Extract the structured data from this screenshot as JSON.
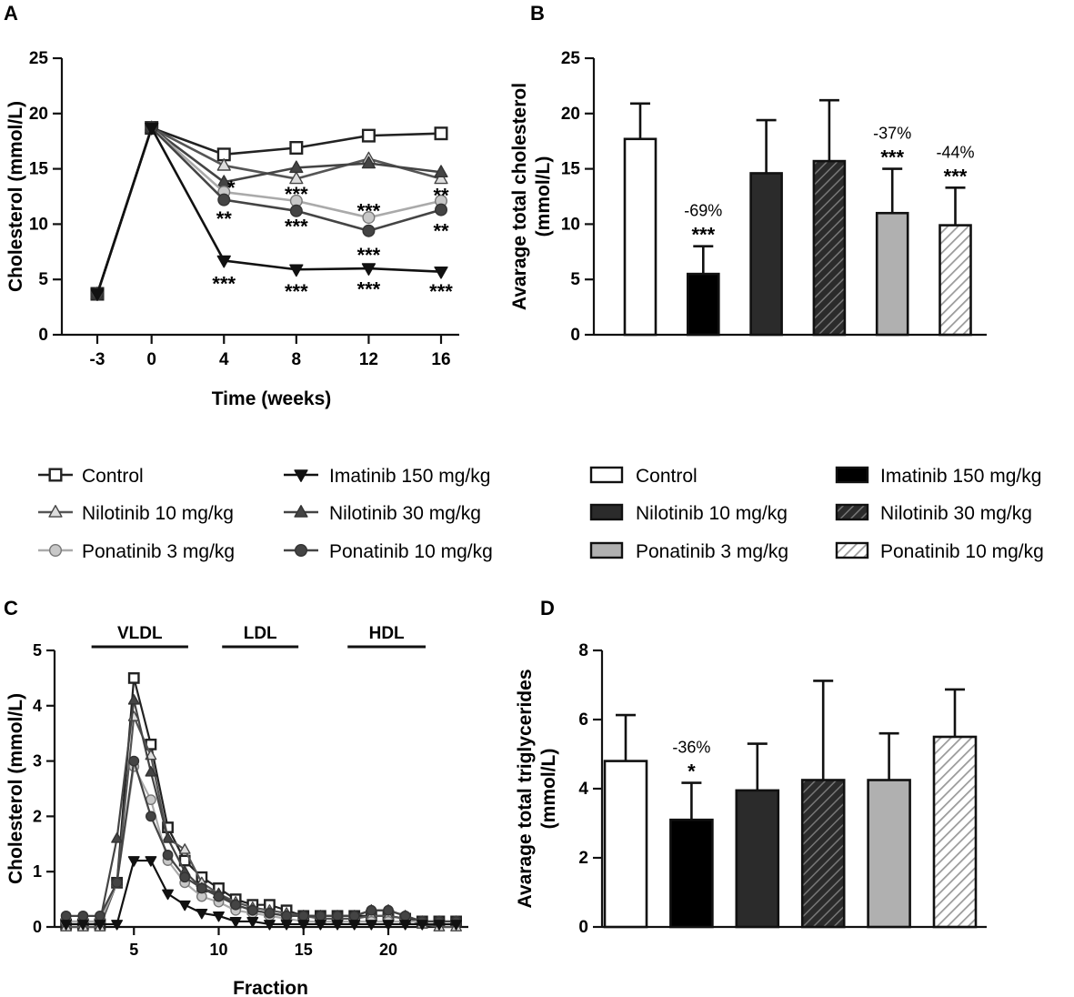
{
  "panels": {
    "A": {
      "letter": "A"
    },
    "B": {
      "letter": "B"
    },
    "C": {
      "letter": "C"
    },
    "D": {
      "letter": "D"
    }
  },
  "legend_lines": [
    {
      "label": "Control",
      "series": "Control"
    },
    {
      "label": "Imatinib 150 mg/kg",
      "series": "Imatinib 150 mg/kg"
    },
    {
      "label": "Nilotinib 10 mg/kg",
      "series": "Nilotinib 10 mg/kg"
    },
    {
      "label": "Nilotinib 30 mg/kg",
      "series": "Nilotinib 30 mg/kg"
    },
    {
      "label": "Ponatinib 3 mg/kg",
      "series": "Ponatinib 3 mg/kg"
    },
    {
      "label": "Ponatinib 10 mg/kg",
      "series": "Ponatinib 10 mg/kg"
    }
  ],
  "legend_bars": [
    {
      "label": "Control",
      "series": "Control"
    },
    {
      "label": "Imatinib 150 mg/kg",
      "series": "Imatinib 150 mg/kg"
    },
    {
      "label": "Nilotinib 10 mg/kg",
      "series": "Nilotinib 10 mg/kg"
    },
    {
      "label": "Nilotinib 30 mg/kg",
      "series": "Nilotinib 30 mg/kg"
    },
    {
      "label": "Ponatinib 3 mg/kg",
      "series": "Ponatinib 3 mg/kg"
    },
    {
      "label": "Ponatinib 10 mg/kg",
      "series": "Ponatinib 10 mg/kg"
    }
  ],
  "styles": {
    "Control": {
      "marker": "square",
      "fill": "#ffffff",
      "stroke": "#222222",
      "line": "#222222",
      "bar": "#ffffff",
      "hatch": false
    },
    "Imatinib 150 mg/kg": {
      "marker": "tri-down",
      "fill": "#111111",
      "stroke": "#111111",
      "line": "#111111",
      "bar": "#000000",
      "hatch": false
    },
    "Nilotinib 10 mg/kg": {
      "marker": "tri-up",
      "fill": "#dddddd",
      "stroke": "#444444",
      "line": "#555555",
      "bar": "#2b2b2b",
      "hatch": false
    },
    "Nilotinib 30 mg/kg": {
      "marker": "tri-up",
      "fill": "#444444",
      "stroke": "#333333",
      "line": "#444444",
      "bar": "#2b2b2b",
      "hatch": true
    },
    "Ponatinib 3 mg/kg": {
      "marker": "circle",
      "fill": "#c8c8c8",
      "stroke": "#777777",
      "line": "#aaaaaa",
      "bar": "#b0b0b0",
      "hatch": false
    },
    "Ponatinib 10 mg/kg": {
      "marker": "circle",
      "fill": "#444444",
      "stroke": "#333333",
      "line": "#444444",
      "bar": "#d8d8d8",
      "hatch": true
    }
  },
  "chart_data": [
    {
      "id": "A",
      "type": "line",
      "title": "",
      "xlabel": "Time (weeks)",
      "ylabel": "Cholesterol (mmol/L)",
      "x_categories": [
        "-3",
        "0",
        "4",
        "8",
        "12",
        "16"
      ],
      "yticks": [
        "0",
        "5",
        "10",
        "15",
        "20",
        "25"
      ],
      "ylim": [
        0,
        25
      ],
      "series": [
        {
          "name": "Control",
          "values": [
            3.7,
            18.7,
            16.3,
            16.9,
            18.0,
            18.2
          ]
        },
        {
          "name": "Nilotinib 10 mg/kg",
          "values": [
            3.7,
            18.7,
            15.3,
            14.1,
            15.9,
            14.1
          ]
        },
        {
          "name": "Nilotinib 30 mg/kg",
          "values": [
            3.7,
            18.7,
            13.8,
            15.1,
            15.5,
            14.7
          ]
        },
        {
          "name": "Ponatinib 3 mg/kg",
          "values": [
            3.7,
            18.7,
            12.9,
            12.1,
            10.6,
            12.1
          ]
        },
        {
          "name": "Ponatinib 10 mg/kg",
          "values": [
            3.7,
            18.7,
            12.2,
            11.2,
            9.4,
            11.3
          ]
        },
        {
          "name": "Imatinib 150 mg/kg",
          "values": [
            3.7,
            18.7,
            6.7,
            5.9,
            6.0,
            5.7
          ]
        }
      ],
      "annotations": [
        {
          "x": "4",
          "y": 13.5,
          "text": "*"
        },
        {
          "x": "8",
          "y": 12.9,
          "text": "***"
        },
        {
          "x": "8",
          "y": 10.0,
          "text": "***"
        },
        {
          "x": "12",
          "y": 11.4,
          "text": "***"
        },
        {
          "x": "12",
          "y": 7.4,
          "text": "***"
        },
        {
          "x": "16",
          "y": 12.8,
          "text": "**"
        },
        {
          "x": "16",
          "y": 9.6,
          "text": "**"
        },
        {
          "x": "4",
          "y": 10.7,
          "text": "**"
        },
        {
          "x": "4",
          "y": 4.8,
          "text": "***"
        },
        {
          "x": "8",
          "y": 4.1,
          "text": "***"
        },
        {
          "x": "12",
          "y": 4.3,
          "text": "***"
        },
        {
          "x": "16",
          "y": 4.1,
          "text": "***"
        }
      ]
    },
    {
      "id": "B",
      "type": "bar",
      "title": "",
      "ylabel_lines": [
        "Avarage total cholesterol",
        "(mmol/L)"
      ],
      "yticks": [
        "0",
        "5",
        "10",
        "15",
        "20",
        "25"
      ],
      "ylim": [
        0,
        25
      ],
      "categories": [
        "Control",
        "Imatinib 150 mg/kg",
        "Nilotinib 10 mg/kg",
        "Nilotinib 30 mg/kg",
        "Ponatinib 3 mg/kg",
        "Ponatinib 10 mg/kg"
      ],
      "values": [
        17.7,
        5.5,
        14.6,
        15.7,
        11.0,
        9.9
      ],
      "errors": [
        3.2,
        2.5,
        4.8,
        5.5,
        4.0,
        3.4
      ],
      "annotations": [
        {
          "index": 1,
          "pct": "-69%",
          "stars": "***"
        },
        {
          "index": 4,
          "pct": "-37%",
          "stars": "***"
        },
        {
          "index": 5,
          "pct": "-44%",
          "stars": "***"
        }
      ]
    },
    {
      "id": "C",
      "type": "line",
      "title": "",
      "xlabel": "Fraction",
      "ylabel": "Cholesterol (mmol/L)",
      "xlim": [
        0,
        25
      ],
      "ylim": [
        0,
        5
      ],
      "xticks": [
        "5",
        "10",
        "15",
        "20"
      ],
      "yticks": [
        "0",
        "1",
        "2",
        "3",
        "4",
        "5"
      ],
      "regions": [
        {
          "label": "VLDL",
          "from": 2.5,
          "to": 8.2
        },
        {
          "label": "LDL",
          "from": 10.2,
          "to": 14.7
        },
        {
          "label": "HDL",
          "from": 17.6,
          "to": 22.2
        }
      ],
      "x": [
        1,
        2,
        3,
        4,
        5,
        6,
        7,
        8,
        9,
        10,
        11,
        12,
        13,
        14,
        15,
        16,
        17,
        18,
        19,
        20,
        21,
        22,
        23,
        24
      ],
      "series": [
        {
          "name": "Control",
          "values": [
            0.05,
            0.05,
            0.05,
            0.8,
            4.5,
            3.3,
            1.8,
            1.2,
            0.9,
            0.7,
            0.5,
            0.4,
            0.4,
            0.3,
            0.2,
            0.2,
            0.2,
            0.2,
            0.2,
            0.2,
            0.15,
            0.1,
            0.1,
            0.1
          ]
        },
        {
          "name": "Nilotinib 10 mg/kg",
          "values": [
            0.0,
            0.0,
            0.0,
            0.8,
            3.8,
            3.1,
            1.6,
            1.4,
            0.8,
            0.6,
            0.45,
            0.35,
            0.3,
            0.25,
            0.2,
            0.15,
            0.15,
            0.15,
            0.2,
            0.2,
            0.15,
            0.05,
            0.0,
            0.0
          ]
        },
        {
          "name": "Nilotinib 30 mg/kg",
          "values": [
            0.1,
            0.1,
            0.1,
            1.6,
            4.1,
            2.8,
            1.6,
            1.0,
            0.7,
            0.6,
            0.4,
            0.3,
            0.25,
            0.2,
            0.2,
            0.2,
            0.2,
            0.2,
            0.3,
            0.3,
            0.2,
            0.1,
            0.1,
            0.1
          ]
        },
        {
          "name": "Ponatinib 3 mg/kg",
          "values": [
            0.1,
            0.1,
            0.1,
            0.8,
            2.9,
            2.3,
            1.2,
            0.8,
            0.55,
            0.45,
            0.3,
            0.25,
            0.2,
            0.15,
            0.1,
            0.1,
            0.1,
            0.1,
            0.1,
            0.1,
            0.1,
            0.1,
            0.1,
            0.1
          ]
        },
        {
          "name": "Ponatinib 10 mg/kg",
          "values": [
            0.2,
            0.2,
            0.2,
            0.8,
            3.0,
            2.0,
            1.3,
            0.9,
            0.7,
            0.55,
            0.4,
            0.3,
            0.25,
            0.2,
            0.2,
            0.2,
            0.2,
            0.2,
            0.3,
            0.3,
            0.2,
            0.1,
            0.1,
            0.1
          ]
        },
        {
          "name": "Imatinib 150 mg/kg",
          "values": [
            0.05,
            0.05,
            0.05,
            0.05,
            1.2,
            1.2,
            0.6,
            0.4,
            0.25,
            0.2,
            0.1,
            0.1,
            0.05,
            0.05,
            0.05,
            0.05,
            0.05,
            0.05,
            0.05,
            0.05,
            0.05,
            0.05,
            0.05,
            0.05
          ]
        }
      ]
    },
    {
      "id": "D",
      "type": "bar",
      "title": "",
      "ylabel_lines": [
        "Avarage total triglycerides",
        "(mmol/L)"
      ],
      "yticks": [
        "0",
        "2",
        "4",
        "6",
        "8"
      ],
      "ylim": [
        0,
        8
      ],
      "categories": [
        "Control",
        "Imatinib 150 mg/kg",
        "Nilotinib 10 mg/kg",
        "Nilotinib 30 mg/kg",
        "Ponatinib 3 mg/kg",
        "Ponatinib 10 mg/kg"
      ],
      "values": [
        4.8,
        3.1,
        3.95,
        4.25,
        4.25,
        5.5
      ],
      "errors": [
        1.33,
        1.07,
        1.35,
        2.87,
        1.35,
        1.37
      ],
      "annotations": [
        {
          "index": 1,
          "pct": "-36%",
          "stars": "*"
        }
      ]
    }
  ]
}
